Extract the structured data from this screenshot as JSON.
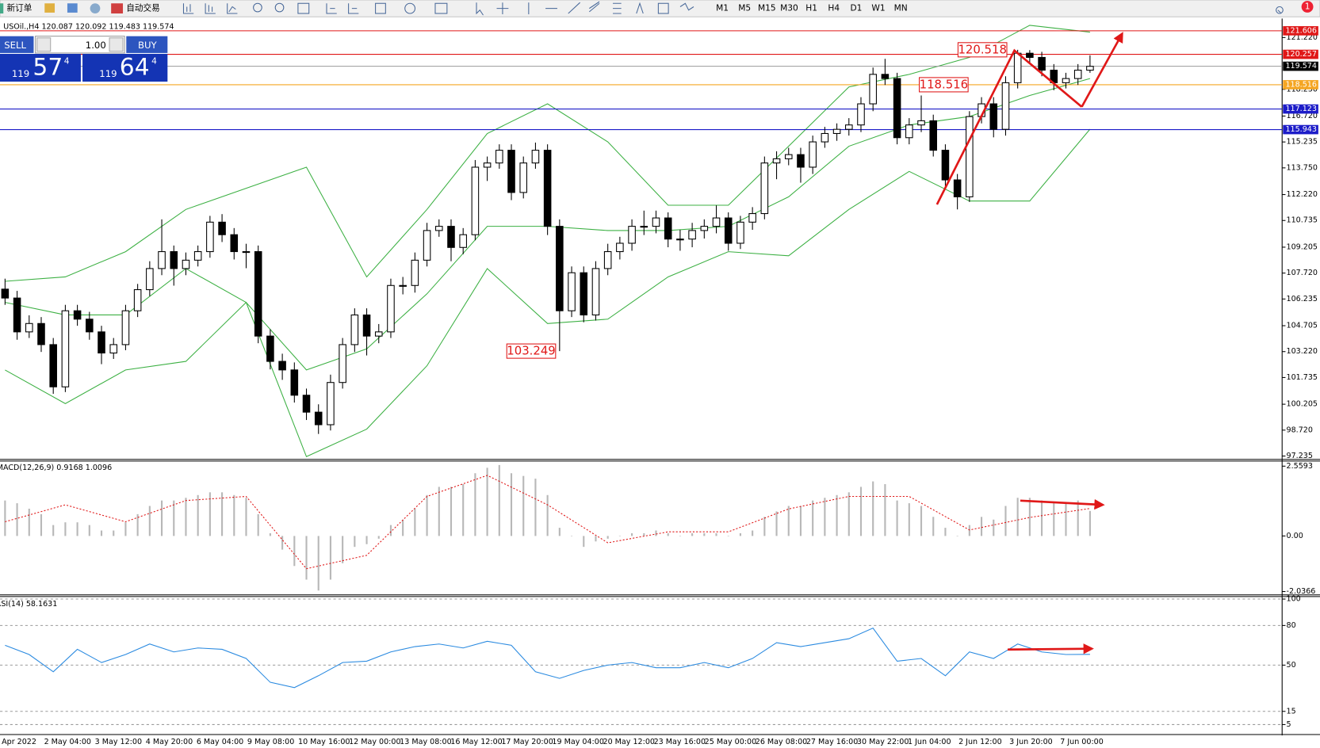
{
  "toolbar": {
    "new_order": "新订单",
    "auto_trading": "自动交易",
    "timeframes": [
      "M1",
      "M5",
      "M15",
      "M30",
      "H1",
      "H4",
      "D1",
      "W1",
      "MN"
    ],
    "notifications": "1"
  },
  "trade_panel": {
    "sell": "SELL",
    "buy": "BUY",
    "lots": "1.00",
    "bid_big": "119",
    "bid_main": "57",
    "bid_pip": "4",
    "ask_big": "119",
    "ask_main": "64",
    "ask_pip": "4"
  },
  "time_labels": [
    "Apr 2022",
    "2 May 04:00",
    "3 May 12:00",
    "4 May 20:00",
    "6 May 04:00",
    "9 May 08:00",
    "10 May 16:00",
    "12 May 00:00",
    "13 May 08:00",
    "16 May 12:00",
    "17 May 20:00",
    "19 May 04:00",
    "20 May 12:00",
    "23 May 16:00",
    "25 May 00:00",
    "26 May 08:00",
    "27 May 16:00",
    "30 May 22:00",
    "1 Jun 04:00",
    "2 Jun 12:00",
    "3 Jun 20:00",
    "7 Jun 00:00"
  ],
  "chart_data": [
    {
      "type": "candlestick",
      "title": "USOil.,H4  120.087 120.092 119.483 119.574",
      "ylim": [
        97.09,
        122.31
      ],
      "yticks": [
        {
          "value": 121.22,
          "label": "121.220"
        },
        {
          "value": 118.25,
          "label": "118.250"
        },
        {
          "value": 116.72,
          "label": "116.720"
        },
        115.235,
        {
          "value": 113.75,
          "label": "113.750"
        },
        {
          "value": 112.22,
          "label": "112.220"
        },
        110.735,
        109.205,
        {
          "value": 107.72,
          "label": "107.720"
        },
        106.235,
        104.705,
        {
          "value": 103.22,
          "label": "103.220"
        },
        101.735,
        100.205,
        {
          "value": 98.72,
          "label": "98.720"
        },
        97.235
      ],
      "candles": [
        [
          106.8,
          107.4,
          105.9,
          106.29
        ],
        [
          106.29,
          106.7,
          103.9,
          104.35
        ],
        [
          104.35,
          105.3,
          104.0,
          104.83
        ],
        [
          104.83,
          105.2,
          103.2,
          103.62
        ],
        [
          103.62,
          104.0,
          100.8,
          101.2
        ],
        [
          101.2,
          105.9,
          100.9,
          105.56
        ],
        [
          105.56,
          105.9,
          104.7,
          105.08
        ],
        [
          105.08,
          105.5,
          103.9,
          104.35
        ],
        [
          104.35,
          104.7,
          102.5,
          103.14
        ],
        [
          103.14,
          104.0,
          102.8,
          103.62
        ],
        [
          103.62,
          105.9,
          103.3,
          105.56
        ],
        [
          105.56,
          107.1,
          105.2,
          106.77
        ],
        [
          106.77,
          108.4,
          106.4,
          107.98
        ],
        [
          107.98,
          110.8,
          107.6,
          108.95
        ],
        [
          108.95,
          109.3,
          107.0,
          107.98
        ],
        [
          107.98,
          108.9,
          107.6,
          108.46
        ],
        [
          108.46,
          109.3,
          108.1,
          108.95
        ],
        [
          108.95,
          111.0,
          108.6,
          110.64
        ],
        [
          110.64,
          111.1,
          109.5,
          109.92
        ],
        [
          109.92,
          110.3,
          108.5,
          108.95
        ],
        [
          108.95,
          109.4,
          108.0,
          108.95
        ],
        [
          108.95,
          109.3,
          103.7,
          104.11
        ],
        [
          104.11,
          104.5,
          102.2,
          102.66
        ],
        [
          102.66,
          103.1,
          101.6,
          102.17
        ],
        [
          102.17,
          102.6,
          100.3,
          100.72
        ],
        [
          100.72,
          101.1,
          99.3,
          99.75
        ],
        [
          99.75,
          100.2,
          98.5,
          99.03
        ],
        [
          99.03,
          101.9,
          98.7,
          101.45
        ],
        [
          101.45,
          104.0,
          101.1,
          103.62
        ],
        [
          103.62,
          105.7,
          103.2,
          105.32
        ],
        [
          105.32,
          105.7,
          103.0,
          104.11
        ],
        [
          104.11,
          104.8,
          103.7,
          104.35
        ],
        [
          104.35,
          107.4,
          104.0,
          107.01
        ],
        [
          107.01,
          107.5,
          106.5,
          107.01
        ],
        [
          107.01,
          108.9,
          106.6,
          108.46
        ],
        [
          108.46,
          110.6,
          108.1,
          110.16
        ],
        [
          110.16,
          110.8,
          109.8,
          110.4
        ],
        [
          110.4,
          110.8,
          108.4,
          109.19
        ],
        [
          109.19,
          110.3,
          108.8,
          109.92
        ],
        [
          109.92,
          114.2,
          109.6,
          113.79
        ],
        [
          113.79,
          114.4,
          113.0,
          114.03
        ],
        [
          114.03,
          115.1,
          113.7,
          114.76
        ],
        [
          114.76,
          115.1,
          111.9,
          112.34
        ],
        [
          112.34,
          114.4,
          112.0,
          114.03
        ],
        [
          114.03,
          115.2,
          113.7,
          114.76
        ],
        [
          114.76,
          115.1,
          109.9,
          110.4
        ],
        [
          110.4,
          110.8,
          103.249,
          105.56
        ],
        [
          105.56,
          108.1,
          105.2,
          107.74
        ],
        [
          107.74,
          108.1,
          104.9,
          105.32
        ],
        [
          105.32,
          108.4,
          105.0,
          107.98
        ],
        [
          107.98,
          109.4,
          107.6,
          108.95
        ],
        [
          108.95,
          109.8,
          108.5,
          109.43
        ],
        [
          109.43,
          110.8,
          109.0,
          110.4
        ],
        [
          110.4,
          111.3,
          109.9,
          110.4
        ],
        [
          110.4,
          111.3,
          110.0,
          110.88
        ],
        [
          110.88,
          111.2,
          109.2,
          109.67
        ],
        [
          109.67,
          110.2,
          109.0,
          109.67
        ],
        [
          109.67,
          110.6,
          109.2,
          110.16
        ],
        [
          110.16,
          110.8,
          109.7,
          110.4
        ],
        [
          110.4,
          111.6,
          110.0,
          110.88
        ],
        [
          110.88,
          111.2,
          109.0,
          109.43
        ],
        [
          109.43,
          111.0,
          109.1,
          110.64
        ],
        [
          110.64,
          111.5,
          110.2,
          111.13
        ],
        [
          111.13,
          114.4,
          110.8,
          114.03
        ],
        [
          114.03,
          114.7,
          113.1,
          114.27
        ],
        [
          114.27,
          114.9,
          113.9,
          114.51
        ],
        [
          114.51,
          114.9,
          112.9,
          113.79
        ],
        [
          113.79,
          115.6,
          113.4,
          115.24
        ],
        [
          115.24,
          116.1,
          114.9,
          115.72
        ],
        [
          115.72,
          116.3,
          115.3,
          115.96
        ],
        [
          115.96,
          116.6,
          115.6,
          116.21
        ],
        [
          116.21,
          117.8,
          115.8,
          117.42
        ],
        [
          117.42,
          119.5,
          117.0,
          119.11
        ],
        [
          119.11,
          120.0,
          118.5,
          118.87
        ],
        [
          118.87,
          119.2,
          115.1,
          115.48
        ],
        [
          115.48,
          116.6,
          115.1,
          116.21
        ],
        [
          116.21,
          117.9,
          115.8,
          116.45
        ],
        [
          116.45,
          116.8,
          114.4,
          114.76
        ],
        [
          114.76,
          115.1,
          112.7,
          113.06
        ],
        [
          113.06,
          113.4,
          111.37,
          112.09
        ],
        [
          112.09,
          117.0,
          111.8,
          116.69
        ],
        [
          116.69,
          117.8,
          116.3,
          117.42
        ],
        [
          117.42,
          117.8,
          115.5,
          115.96
        ],
        [
          115.96,
          119.0,
          115.6,
          118.63
        ],
        [
          118.63,
          120.518,
          118.3,
          120.32
        ],
        [
          120.32,
          120.5,
          119.7,
          120.08
        ],
        [
          120.08,
          120.4,
          119.0,
          119.35
        ],
        [
          119.35,
          119.7,
          118.2,
          118.63
        ],
        [
          118.63,
          119.2,
          118.3,
          118.87
        ],
        [
          118.87,
          119.7,
          118.5,
          119.35
        ],
        [
          119.35,
          120.2,
          119.2,
          119.57
        ]
      ],
      "bands": {
        "color": "#3cb043",
        "x": [
          0,
          5,
          10,
          15,
          20,
          25,
          30,
          35,
          40,
          45,
          50,
          55,
          60,
          65,
          70,
          75,
          80,
          85,
          90
        ],
        "upper": [
          107.25,
          107.5,
          108.95,
          111.37,
          112.58,
          113.79,
          107.5,
          111.37,
          115.72,
          117.42,
          115.24,
          111.61,
          111.61,
          114.99,
          118.39,
          119.11,
          120.08,
          121.92,
          121.53
        ],
        "middle": [
          106.04,
          105.32,
          105.32,
          107.98,
          106.04,
          102.17,
          103.38,
          106.53,
          110.4,
          110.4,
          110.16,
          110.16,
          110.4,
          112.09,
          114.99,
          116.21,
          116.69,
          117.9,
          118.87
        ],
        "lower": [
          102.17,
          100.24,
          102.17,
          102.66,
          106.04,
          97.2,
          98.78,
          102.41,
          107.98,
          104.83,
          105.08,
          107.5,
          108.95,
          108.71,
          111.37,
          113.55,
          111.85,
          111.85,
          115.97
        ]
      },
      "levels": [
        {
          "value": 121.606,
          "color": "#e01818"
        },
        {
          "value": 120.257,
          "color": "#e01818"
        },
        {
          "value": 119.574,
          "color": "#9a9a9a"
        },
        {
          "value": 118.516,
          "color": "#f5a623"
        },
        {
          "value": 117.123,
          "color": "#1c1cc8"
        },
        {
          "value": 115.943,
          "color": "#1c1cc8"
        }
      ],
      "annotations": [
        120.518,
        118.516,
        103.249
      ]
    },
    {
      "type": "macd",
      "title": "MACD(12,26,9) 0.9168 1.0096",
      "ylim": [
        -2.128,
        2.745
      ],
      "yticks": [
        2.5593,
        {
          "value": 0,
          "label": "0.00"
        },
        -2.0366
      ],
      "values": [
        1.3,
        1.2,
        1.0,
        0.8,
        0.4,
        0.5,
        0.5,
        0.4,
        0.2,
        0.2,
        0.5,
        0.8,
        1.1,
        1.3,
        1.3,
        1.4,
        1.5,
        1.6,
        1.6,
        1.5,
        1.4,
        0.8,
        0.1,
        -0.5,
        -1.1,
        -1.6,
        -2.0,
        -1.6,
        -1.0,
        -0.4,
        -0.3,
        -0.1,
        0.4,
        0.6,
        1.0,
        1.5,
        1.8,
        1.8,
        1.9,
        2.3,
        2.5,
        2.6,
        2.3,
        2.2,
        2.1,
        1.5,
        0.3,
        0.0,
        -0.4,
        -0.2,
        -0.1,
        0.0,
        0.1,
        0.1,
        0.2,
        0.1,
        0.0,
        0.1,
        0.1,
        0.1,
        0.0,
        0.1,
        0.2,
        0.7,
        0.9,
        1.1,
        1.1,
        1.3,
        1.4,
        1.5,
        1.6,
        1.8,
        2.0,
        1.9,
        1.3,
        1.2,
        1.1,
        0.7,
        0.3,
        0.0,
        0.4,
        0.7,
        0.6,
        1.1,
        1.4,
        1.4,
        1.3,
        1.2,
        1.2,
        1.3,
        0.9168
      ],
      "color": "#b8b8b8",
      "signal": {
        "color": "#e01818",
        "x": [
          0,
          5,
          10,
          15,
          20,
          25,
          30,
          35,
          40,
          45,
          50,
          55,
          60,
          65,
          70,
          75,
          80,
          85,
          90
        ],
        "values": [
          0.52,
          1.14,
          0.52,
          1.3,
          1.45,
          -1.2,
          -0.71,
          1.45,
          2.22,
          1.14,
          -0.25,
          0.15,
          0.15,
          0.99,
          1.45,
          1.45,
          0.22,
          0.68,
          1.0096
        ]
      }
    },
    {
      "type": "line",
      "title": "RSI(14) 58.1631",
      "ylim": [
        -1.9,
        101.9
      ],
      "yticks": [
        100,
        80,
        50,
        15,
        5
      ],
      "grid": true,
      "color": "#2a8ae0",
      "x": [
        0,
        2,
        4,
        6,
        8,
        10,
        12,
        14,
        16,
        18,
        20,
        22,
        24,
        26,
        28,
        30,
        32,
        34,
        36,
        38,
        40,
        42,
        44,
        46,
        48,
        50,
        52,
        54,
        56,
        58,
        60,
        62,
        64,
        66,
        68,
        70,
        72,
        74,
        76,
        78,
        80,
        82,
        84,
        86,
        88,
        90
      ],
      "values": [
        65,
        58,
        45,
        62,
        52,
        58,
        66,
        60,
        63,
        62,
        55,
        37,
        33,
        42,
        52,
        53,
        60,
        64,
        66,
        63,
        68,
        65,
        45,
        40,
        46,
        50,
        52,
        48,
        48,
        52,
        48,
        55,
        67,
        64,
        67,
        70,
        78,
        53,
        55,
        42,
        60,
        55,
        66,
        60,
        58,
        58.1631
      ]
    }
  ]
}
